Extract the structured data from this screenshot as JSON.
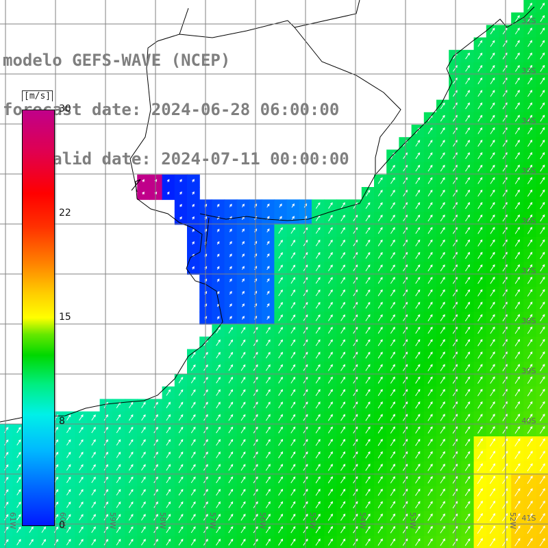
{
  "title": {
    "line1": "modelo GEFS-WAVE (NCEP)",
    "line2": "forecast date: 2024-06-28 06:00:00",
    "line3": "    valid date: 2024-07-11 00:00:00"
  },
  "colorbar": {
    "unit": "[m/s]",
    "ticks": [
      "30",
      "22",
      "15",
      "8",
      "0"
    ],
    "min": 0,
    "max": 30
  },
  "axes": {
    "lat_labels": [
      "32S",
      "33S",
      "34S",
      "35S",
      "36S",
      "37S",
      "38S",
      "39S",
      "40S",
      "41S"
    ],
    "lon_labels": [
      "61W",
      "60W",
      "59W",
      "58W",
      "57W",
      "56W",
      "55W",
      "54W",
      "53W",
      "52W"
    ]
  },
  "colors": {
    "land": "#ffffff",
    "coast": "#000000",
    "grid": "#808080",
    "title": "#7f7f7f",
    "arrow": "#ffffff"
  },
  "field": {
    "variable": "wind speed",
    "units": "m/s",
    "pattern": "low speeds (about 1 m/s) in the Rio de la Plata estuary, about 7-8 m/s near the coast, rising to 10-12 m/s offshore and about 14-15 m/s in the far south-east corner; wind blowing toward the north-east"
  }
}
